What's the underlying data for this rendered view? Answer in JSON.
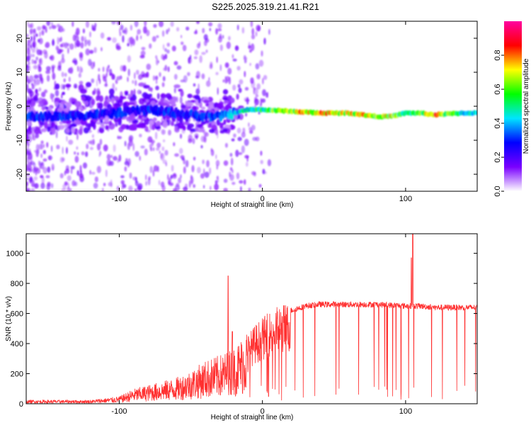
{
  "title": "S225.2025.319.21.41.R21",
  "chart_data": [
    {
      "type": "heatmap",
      "xlabel": "Height of straight line (km)",
      "ylabel": "Frequency (Hz)",
      "xlim": [
        -165,
        150
      ],
      "ylim": [
        -25,
        25
      ],
      "x_ticks": [
        -100,
        0,
        100
      ],
      "y_ticks": [
        -20,
        -10,
        0,
        10,
        20
      ],
      "colorbar": {
        "label": "Normalized spectral amplitude",
        "range": [
          0,
          1
        ],
        "ticks": [
          0.0,
          0.2,
          0.4,
          0.6,
          0.8
        ],
        "ticks_text": [
          "0.0",
          "0.2",
          "0.4",
          "0.6",
          "0.8"
        ],
        "colormap": [
          "#ffffff",
          "#7a00ff",
          "#0000ff",
          "#00e5ff",
          "#00ff00",
          "#ffff00",
          "#ff0000",
          "#ff00a0"
        ]
      },
      "ridge": {
        "x": [
          -165,
          -140,
          -120,
          -100,
          -80,
          -60,
          -40,
          -30,
          -20,
          -10,
          0,
          20,
          40,
          60,
          70,
          80,
          90,
          100,
          110,
          120,
          140,
          150
        ],
        "freq_hz": [
          -3,
          -3,
          -2.5,
          -2,
          -1,
          -2,
          -3,
          -3,
          -2,
          -1,
          -1,
          -1.5,
          -2,
          -2,
          -2.5,
          -3,
          -3,
          -2,
          -2,
          -2.5,
          -2,
          -2
        ],
        "amplitude": [
          0.3,
          0.3,
          0.3,
          0.3,
          0.3,
          0.3,
          0.3,
          0.35,
          0.45,
          0.5,
          0.55,
          0.7,
          0.85,
          0.7,
          0.85,
          0.65,
          0.7,
          0.5,
          0.6,
          0.85,
          0.45,
          0.45
        ]
      }
    },
    {
      "type": "line",
      "xlabel": "Height of straight line (km)",
      "ylabel": "SNR (10 * v/v)",
      "xlim": [
        -165,
        150
      ],
      "ylim": [
        0,
        1130
      ],
      "x_ticks": [
        -100,
        0,
        100
      ],
      "y_ticks": [
        0,
        200,
        400,
        600,
        800,
        1000
      ],
      "series_color": "#ff3030",
      "envelope": {
        "x": [
          -165,
          -140,
          -120,
          -100,
          -90,
          -80,
          -70,
          -60,
          -50,
          -40,
          -30,
          -20,
          -15,
          -10,
          -5,
          0,
          5,
          10,
          20,
          30,
          40,
          60,
          80,
          100,
          110,
          120,
          140,
          150
        ],
        "snr": [
          20,
          20,
          20,
          40,
          80,
          100,
          120,
          140,
          180,
          230,
          260,
          300,
          350,
          420,
          480,
          520,
          560,
          590,
          620,
          650,
          660,
          660,
          660,
          650,
          650,
          640,
          640,
          640
        ]
      },
      "spikes": [
        {
          "x": -24,
          "snr": 850
        },
        {
          "x": 105,
          "snr": 1130
        },
        {
          "x": 104,
          "snr": 970
        },
        {
          "x": -21,
          "snr": 480
        }
      ]
    }
  ]
}
